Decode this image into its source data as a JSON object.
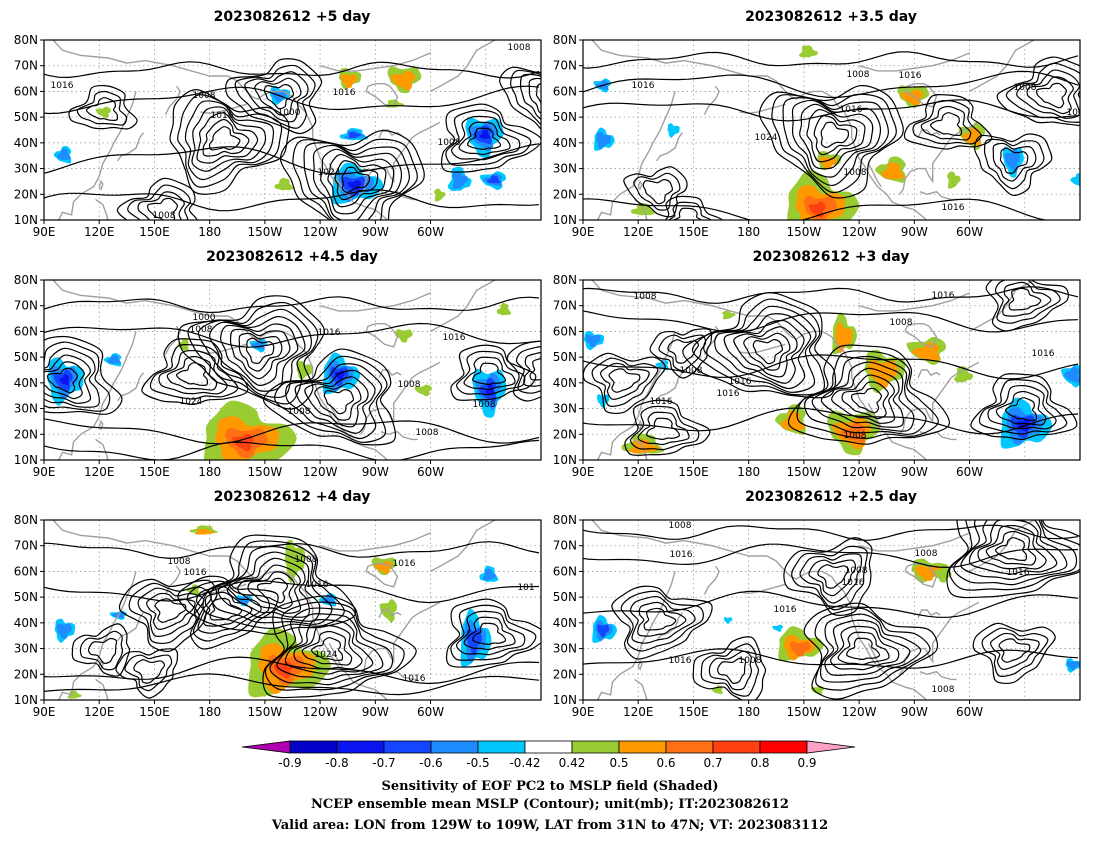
{
  "panels": [
    {
      "title": "2023082612  +5 day",
      "contour_labels": [
        "1016",
        "1008",
        "1016",
        "1000",
        "1016",
        "1008",
        "1024",
        "1008",
        "1008"
      ]
    },
    {
      "title": "2023082612  +3.5 day",
      "contour_labels": [
        "1016",
        "1008",
        "1016",
        "1008",
        "1016",
        "1000",
        "1024",
        "1008",
        "1016"
      ]
    },
    {
      "title": "2023082612  +4.5 day",
      "contour_labels": [
        "1000",
        "1008",
        "1016",
        "1008",
        "1016",
        "1024",
        "1008",
        "1008",
        "1008"
      ]
    },
    {
      "title": "2023082612  +3 day",
      "contour_labels": [
        "1008",
        "1016",
        "1008",
        "1016",
        "1008",
        "1016",
        "1016",
        "1016",
        "1008"
      ]
    },
    {
      "title": "2023082612  +4 day",
      "contour_labels": [
        "1008",
        "1016",
        "1008",
        "1016",
        "1016",
        "1024",
        "1016",
        "101"
      ]
    },
    {
      "title": "2023082612  +2.5 day",
      "contour_labels": [
        "1008",
        "1016",
        "1008",
        "1016",
        "1016",
        "1008",
        "1016",
        "1008",
        "1016",
        "1008"
      ]
    }
  ],
  "axes": {
    "lat_ticks": [
      "10N",
      "20N",
      "30N",
      "40N",
      "50N",
      "60N",
      "70N",
      "80N"
    ],
    "lon_ticks": [
      "90E",
      "120E",
      "150E",
      "180",
      "150W",
      "120W",
      "90W",
      "60W"
    ]
  },
  "colorbar": {
    "labels": [
      "-0.9",
      "-0.8",
      "-0.7",
      "-0.6",
      "-0.5",
      "-0.42",
      "0.42",
      "0.5",
      "0.6",
      "0.7",
      "0.8",
      "0.9"
    ],
    "colors": [
      "#b000b0",
      "#0000c8",
      "#0a14f0",
      "#1446ff",
      "#1e8cff",
      "#00c8ff",
      "#ffffff",
      "#99cc33",
      "#ff9900",
      "#ff7014",
      "#ff4010",
      "#ff0000",
      "#ffa0c8"
    ]
  },
  "caption": {
    "line1": "Sensitivity of EOF PC2 to MSLP field (Shaded)",
    "line2": "NCEP ensemble mean MSLP (Contour); unit(mb); IT:2023082612",
    "line3": "Valid area: LON from 129W to 109W, LAT from 31N to 47N; VT: 2023083112"
  }
}
